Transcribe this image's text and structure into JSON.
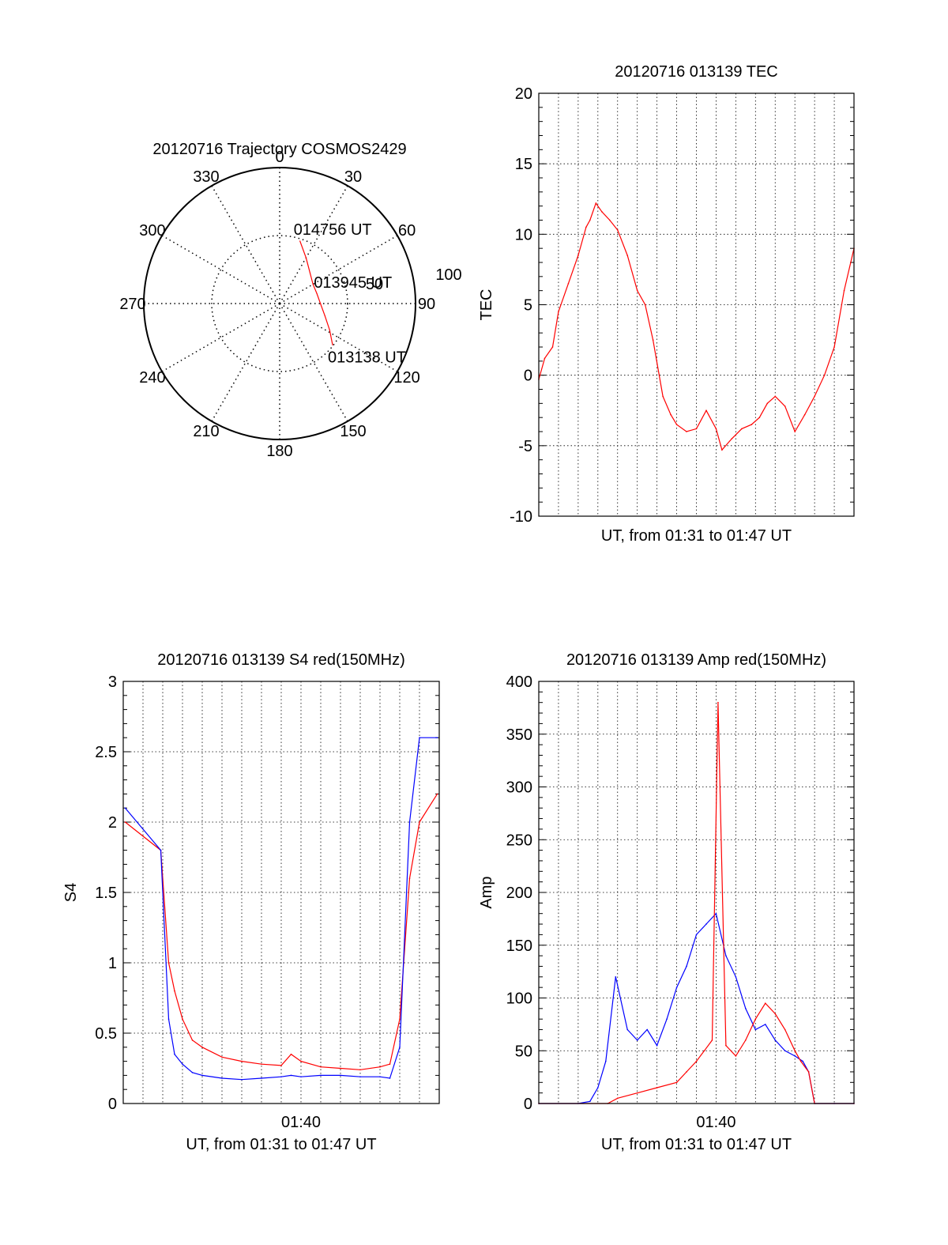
{
  "chart_data": [
    {
      "id": "trajectory",
      "type": "polar",
      "title": "20120716 Trajectory COSMOS2429",
      "azimuth_labels": [
        "0",
        "30",
        "60",
        "90",
        "120",
        "150",
        "180",
        "210",
        "240",
        "270",
        "300",
        "330"
      ],
      "radius_labels": [
        "50",
        "100"
      ],
      "elevation_rings": [
        50,
        100
      ],
      "grid": true,
      "track_color": "#ff0000",
      "track": [
        {
          "az": 18,
          "r": 87
        },
        {
          "az": 30,
          "r": 70
        },
        {
          "az": 45,
          "r": 57
        },
        {
          "az": 60,
          "r": 51
        },
        {
          "az": 75,
          "r": 51
        },
        {
          "az": 90,
          "r": 54
        },
        {
          "az": 105,
          "r": 62
        },
        {
          "az": 118,
          "r": 75
        },
        {
          "az": 128,
          "r": 89
        }
      ],
      "annotations": [
        {
          "text": "014756 UT",
          "az": 18,
          "r": 87
        },
        {
          "text": "013945 UT",
          "az": 83,
          "r": 52
        },
        {
          "text": "013138 UT",
          "az": 128,
          "r": 89
        }
      ]
    },
    {
      "id": "tec",
      "type": "line",
      "title": "20120716 013139 TEC",
      "xlabel": "UT, from 01:31 to 01:47 UT",
      "ylabel": "TEC",
      "xlim": [
        0,
        16
      ],
      "ylim": [
        -10,
        20
      ],
      "yticks": [
        "-10",
        "-5",
        "0",
        "5",
        "10",
        "15",
        "20"
      ],
      "xtick_labels": [],
      "series": [
        {
          "color": "#ff0000",
          "x": [
            0.0,
            0.3,
            0.7,
            1.0,
            1.5,
            2.0,
            2.4,
            2.6,
            2.9,
            3.2,
            3.6,
            4.0,
            4.5,
            5.0,
            5.4,
            5.8,
            6.3,
            6.7,
            7.0,
            7.5,
            8.0,
            8.5,
            9.0,
            9.3,
            9.8,
            10.3,
            10.8,
            11.2,
            11.6,
            12.0,
            12.5,
            13.0,
            13.5,
            14.0,
            14.5,
            15.0,
            15.5,
            16.0
          ],
          "values": [
            -0.3,
            1.2,
            2.0,
            4.5,
            6.5,
            8.5,
            10.5,
            11.0,
            12.2,
            11.6,
            11.0,
            10.3,
            8.5,
            6.0,
            5.0,
            2.5,
            -1.5,
            -2.8,
            -3.5,
            -4.0,
            -3.8,
            -2.5,
            -3.8,
            -5.3,
            -4.5,
            -3.8,
            -3.5,
            -3.0,
            -2.0,
            -1.5,
            -2.2,
            -4.0,
            -2.8,
            -1.5,
            0.0,
            2.0,
            6.0,
            9.0
          ]
        }
      ]
    },
    {
      "id": "s4",
      "type": "line",
      "title": "20120716 013139 S4 red(150MHz)",
      "xlabel": "UT, from 01:31 to 01:47 UT",
      "ylabel": "S4",
      "xlim": [
        0,
        16
      ],
      "ylim": [
        0,
        3
      ],
      "yticks": [
        "0",
        "0.5",
        "1",
        "1.5",
        "2",
        "2.5",
        "3"
      ],
      "xtick_labels": [
        {
          "x": 9,
          "label": "01:40"
        }
      ],
      "series": [
        {
          "color": "#ff0000",
          "x": [
            0.1,
            1.9,
            2.3,
            2.6,
            3.0,
            3.5,
            4.0,
            5.0,
            6.0,
            7.0,
            8.0,
            8.5,
            9.0,
            10.0,
            11.0,
            12.0,
            13.0,
            13.5,
            14.0,
            14.5,
            15.0,
            15.9
          ],
          "values": [
            2.0,
            1.8,
            1.0,
            0.8,
            0.6,
            0.45,
            0.4,
            0.33,
            0.3,
            0.28,
            0.27,
            0.35,
            0.3,
            0.26,
            0.25,
            0.24,
            0.26,
            0.28,
            0.6,
            1.6,
            2.0,
            2.2
          ]
        },
        {
          "color": "#0000ff",
          "x": [
            0.1,
            1.9,
            2.3,
            2.6,
            3.0,
            3.5,
            4.0,
            5.0,
            6.0,
            7.0,
            8.0,
            8.5,
            9.0,
            10.0,
            11.0,
            12.0,
            13.0,
            13.5,
            14.0,
            14.5,
            15.0,
            15.9
          ],
          "values": [
            2.1,
            1.8,
            0.6,
            0.35,
            0.28,
            0.22,
            0.2,
            0.18,
            0.17,
            0.18,
            0.19,
            0.2,
            0.19,
            0.2,
            0.2,
            0.19,
            0.19,
            0.18,
            0.4,
            2.0,
            2.6,
            2.6
          ]
        }
      ]
    },
    {
      "id": "amp",
      "type": "line",
      "title": "20120716 013139 Amp red(150MHz)",
      "xlabel": "UT, from 01:31 to 01:47 UT",
      "ylabel": "Amp",
      "xlim": [
        0,
        16
      ],
      "ylim": [
        0,
        400
      ],
      "yticks": [
        "0",
        "50",
        "100",
        "150",
        "200",
        "250",
        "300",
        "350",
        "400"
      ],
      "xtick_labels": [
        {
          "x": 9,
          "label": "01:40"
        }
      ],
      "series": [
        {
          "color": "#0000ff",
          "x": [
            0.0,
            2.0,
            2.6,
            3.0,
            3.4,
            3.9,
            4.5,
            5.0,
            5.5,
            6.0,
            6.5,
            7.0,
            7.5,
            8.0,
            8.5,
            9.0,
            9.5,
            10.0,
            10.5,
            11.0,
            11.5,
            12.0,
            12.5,
            13.0,
            13.4,
            13.7,
            14.0,
            15.0,
            16.0
          ],
          "values": [
            0,
            0,
            2,
            15,
            40,
            120,
            70,
            60,
            70,
            55,
            80,
            110,
            130,
            160,
            170,
            180,
            140,
            120,
            90,
            70,
            75,
            60,
            50,
            45,
            40,
            30,
            0,
            0,
            0
          ]
        },
        {
          "color": "#ff0000",
          "x": [
            0.0,
            3.5,
            4.0,
            5.0,
            6.0,
            7.0,
            7.5,
            8.0,
            8.4,
            8.8,
            9.1,
            9.5,
            10.0,
            10.5,
            11.0,
            11.5,
            12.0,
            12.5,
            13.0,
            13.3,
            13.7,
            14.0,
            16.0
          ],
          "values": [
            0,
            0,
            5,
            10,
            15,
            20,
            30,
            40,
            50,
            60,
            380,
            55,
            45,
            60,
            80,
            95,
            85,
            70,
            50,
            40,
            30,
            0,
            0
          ]
        }
      ]
    }
  ]
}
